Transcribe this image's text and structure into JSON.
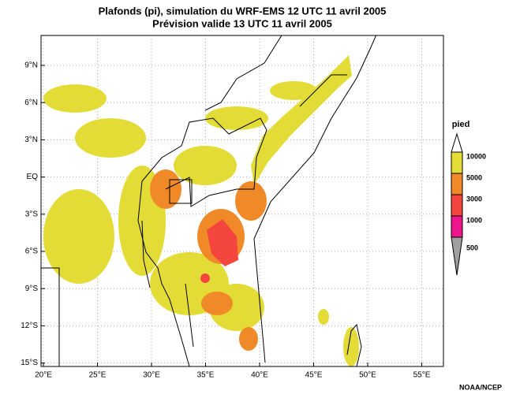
{
  "title": "Plafonds (pi), simulation du WRF-EMS 12 UTC 11 avril 2005",
  "subtitle": "Prévision valide 13 UTC 11 avril 2005",
  "lat_labels": [
    "9°N",
    "6°N",
    "3°N",
    "EQ",
    "3°S",
    "6°S",
    "9°S",
    "12°S",
    "15°S"
  ],
  "lon_labels": [
    "20°E",
    "25°E",
    "30°E",
    "35°E",
    "40°E",
    "45°E",
    "50°E",
    "55°E"
  ],
  "legend": {
    "title": "pied",
    "items": [
      {
        "label": "10000",
        "color": "#e3dc36"
      },
      {
        "label": "5000",
        "color": "#f08a28"
      },
      {
        "label": "3000",
        "color": "#f4463e"
      },
      {
        "label": "1000",
        "color": "#ee168c"
      },
      {
        "label": "500",
        "color": "#a0a0a0"
      }
    ]
  },
  "credit": "NOAA/NCEP"
}
